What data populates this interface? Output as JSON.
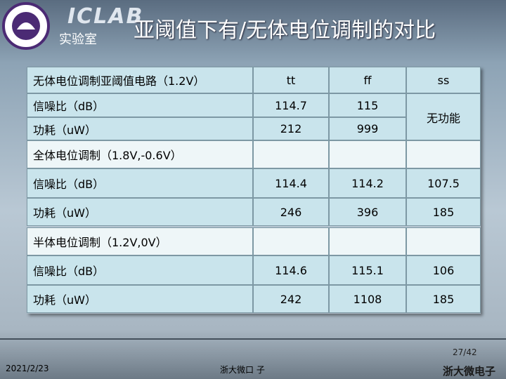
{
  "header": {
    "logo_text": "ICLAB",
    "lab": "实验室",
    "title": "亚阈值下有/无体电位调制的对比"
  },
  "table": {
    "columns": [
      "无体电位调制亚阈值电路（1.2V）",
      "tt",
      "ff",
      "ss"
    ],
    "no_body_bias": {
      "rows": [
        [
          "信噪比（dB）",
          "114.7",
          "115"
        ],
        [
          "功耗（uW）",
          "212",
          "999"
        ]
      ],
      "ss_note": "无功能"
    },
    "full_body_bias": {
      "title": "全体电位调制（1.8V,-0.6V）",
      "rows": [
        [
          "信噪比（dB）",
          "114.4",
          "114.2",
          "107.5"
        ],
        [
          "功耗（uW）",
          "246",
          "396",
          "185"
        ]
      ]
    },
    "half_body_bias": {
      "title": "半体电位调制（1.2V,0V）",
      "rows": [
        [
          "信噪比（dB）",
          "114.6",
          "115.1",
          "106"
        ],
        [
          "功耗（uW）",
          "242",
          "1108",
          "185"
        ]
      ]
    }
  },
  "footer": {
    "page": "27/42",
    "date": "2021/2/23",
    "org": "浙大微口 子",
    "brand": "浙大微电子"
  }
}
